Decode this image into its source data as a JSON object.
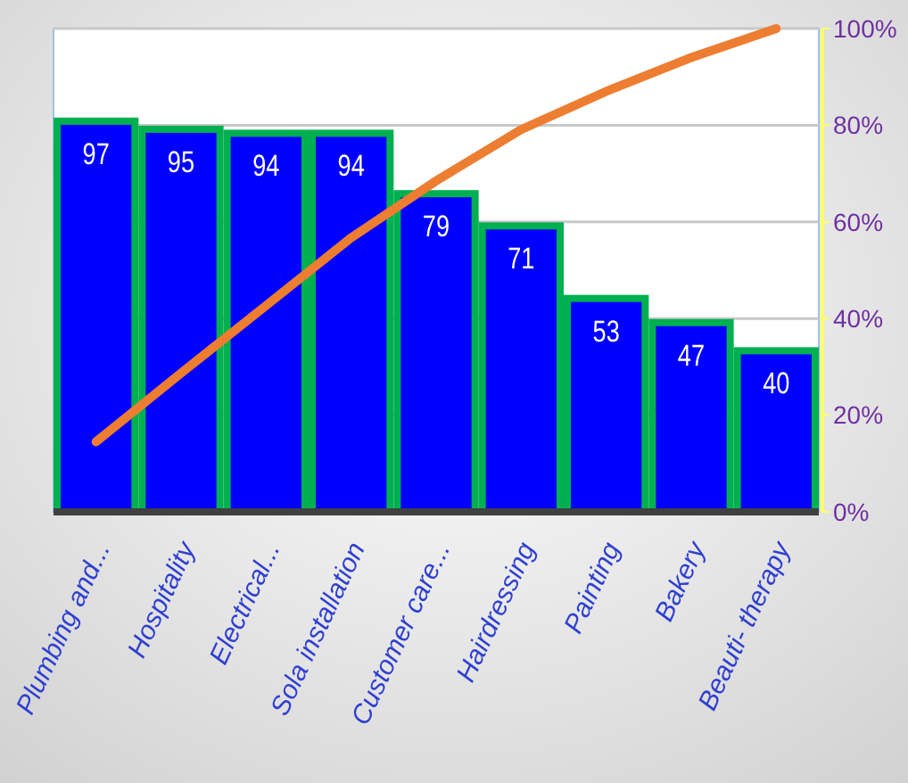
{
  "chart_data": {
    "type": "bar",
    "categories": [
      "Plumbing and...",
      "Hospitality",
      "Electrical...",
      "Sola installation",
      "Customer care...",
      "Hairdressing",
      "Painting",
      "Bakery",
      "Beauti- therapy"
    ],
    "series": [
      {
        "color": "#0000ff",
        "values": [
          97,
          95,
          94,
          94,
          79,
          71,
          53,
          47,
          40
        ],
        "value_labels": [
          "97",
          "95",
          "94",
          "94",
          "79",
          "71",
          "53",
          "47",
          "40"
        ]
      },
      {
        "type": "line",
        "axis": "y2",
        "color": "#ed7d31",
        "values": [
          14.5,
          28.7,
          42.7,
          56.7,
          68.5,
          79.1,
          87.0,
          94.0,
          100
        ]
      }
    ],
    "ylim": [
      0,
      120
    ],
    "y2lim": [
      0,
      100
    ],
    "y2ticks": [
      {
        "value": 0,
        "label": "0%"
      },
      {
        "value": 20,
        "label": "20%"
      },
      {
        "value": 40,
        "label": "40%"
      },
      {
        "value": 60,
        "label": "60%"
      },
      {
        "value": 80,
        "label": "80%"
      },
      {
        "value": 100,
        "label": "100%"
      }
    ],
    "grid": "y2",
    "tick_labels": "xy2",
    "marker": "none",
    "line_style": "solid"
  }
}
